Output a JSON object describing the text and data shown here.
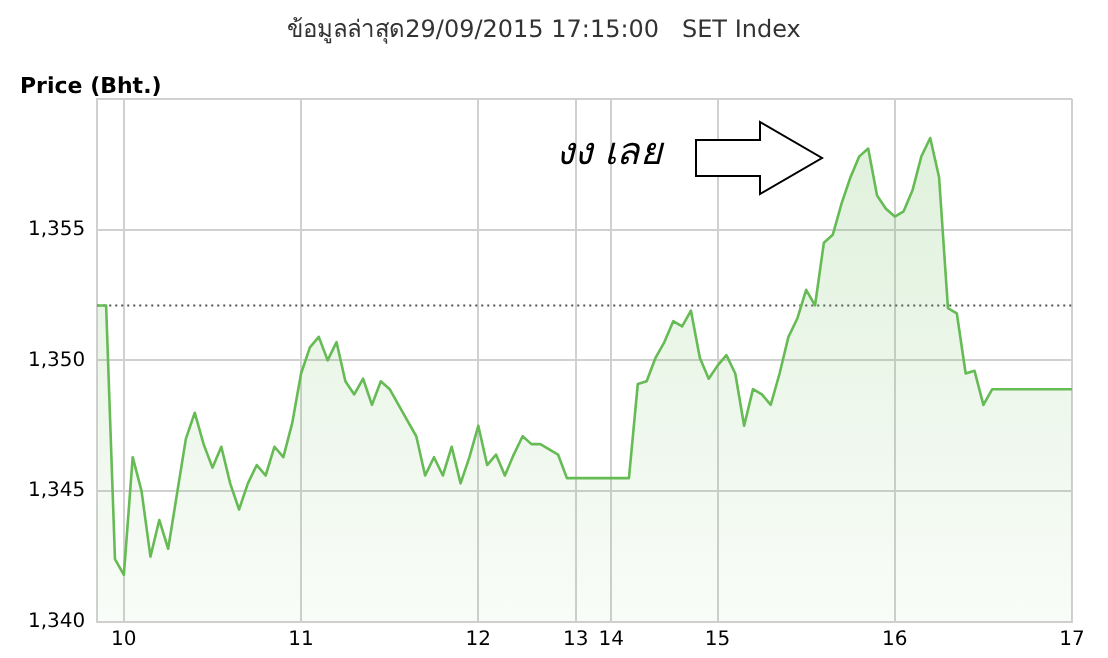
{
  "chart_data": {
    "type": "area",
    "title": "ข้อมูลล่าสุด29/09/2015 17:15:00   SET Index",
    "ylabel": "Price (Bht.)",
    "annotations": [
      "งง เลย"
    ],
    "categories": [
      null,
      null,
      null,
      "10",
      null,
      null,
      null,
      null,
      null,
      null,
      null,
      null,
      null,
      null,
      null,
      null,
      null,
      null,
      null,
      null,
      null,
      null,
      null,
      "11",
      null,
      null,
      null,
      null,
      null,
      null,
      null,
      null,
      null,
      null,
      null,
      null,
      null,
      null,
      null,
      null,
      null,
      null,
      null,
      "12",
      null,
      null,
      null,
      null,
      null,
      null,
      null,
      null,
      null,
      null,
      "13",
      null,
      null,
      null,
      "14",
      null,
      null,
      null,
      null,
      null,
      null,
      null,
      null,
      null,
      null,
      null,
      "15",
      null,
      null,
      null,
      null,
      null,
      null,
      null,
      null,
      null,
      null,
      null,
      null,
      null,
      null,
      null,
      null,
      null,
      null,
      null,
      "16",
      null,
      null,
      null,
      null,
      null,
      null,
      null,
      null,
      null,
      null,
      null,
      null,
      null,
      null,
      null,
      null,
      null,
      null,
      null,
      "17"
    ],
    "series": [
      {
        "color": "#66bb55",
        "values": [
          1352.1,
          1352.1,
          1342.4,
          1341.8,
          1346.3,
          1345.0,
          1342.5,
          1343.9,
          1342.8,
          1344.9,
          1347.0,
          1348.0,
          1346.8,
          1345.9,
          1346.7,
          1345.3,
          1344.3,
          1345.3,
          1346.0,
          1345.6,
          1346.7,
          1346.3,
          1347.6,
          1349.5,
          1350.5,
          1350.9,
          1350.0,
          1350.7,
          1349.2,
          1348.7,
          1349.3,
          1348.3,
          1349.2,
          1348.9,
          1348.3,
          1347.7,
          1347.1,
          1345.6,
          1346.3,
          1345.6,
          1346.7,
          1345.3,
          1346.3,
          1347.5,
          1346.0,
          1346.4,
          1345.6,
          1346.4,
          1347.1,
          1346.8,
          1346.8,
          1346.6,
          1346.4,
          1345.5,
          1345.5,
          1345.5,
          1345.5,
          1345.5,
          1345.5,
          1345.5,
          1345.5,
          1349.1,
          1349.2,
          1350.1,
          1350.7,
          1351.5,
          1351.3,
          1351.9,
          1350.1,
          1349.3,
          1349.8,
          1350.2,
          1349.5,
          1347.5,
          1348.9,
          1348.7,
          1348.3,
          1349.5,
          1350.9,
          1351.6,
          1352.7,
          1352.1,
          1354.5,
          1354.8,
          1356.0,
          1357.0,
          1357.8,
          1358.1,
          1356.3,
          1355.8,
          1355.5,
          1355.7,
          1356.5,
          1357.8,
          1358.5,
          1357.0,
          1352.0,
          1351.8,
          1349.5,
          1349.6,
          1348.3,
          1348.9,
          1348.9,
          1348.9,
          1348.9,
          1348.9,
          1348.9,
          1348.9,
          1348.9,
          1348.9,
          1348.9
        ]
      }
    ],
    "ylim": [
      1340,
      1360
    ],
    "yticks": [
      {
        "value": 1340,
        "label": "1,340"
      },
      {
        "value": 1345,
        "label": "1,345"
      },
      {
        "value": 1350,
        "label": "1,350"
      },
      {
        "value": 1355,
        "label": "1,355"
      },
      {
        "value": 1360,
        "label": null
      }
    ],
    "ref_lines": [
      {
        "axis": "y",
        "value": 1352.1,
        "color": "#555555",
        "line_style": "dotted"
      }
    ],
    "grid": true,
    "legend": false,
    "marker": "none",
    "line_style": "solid"
  }
}
